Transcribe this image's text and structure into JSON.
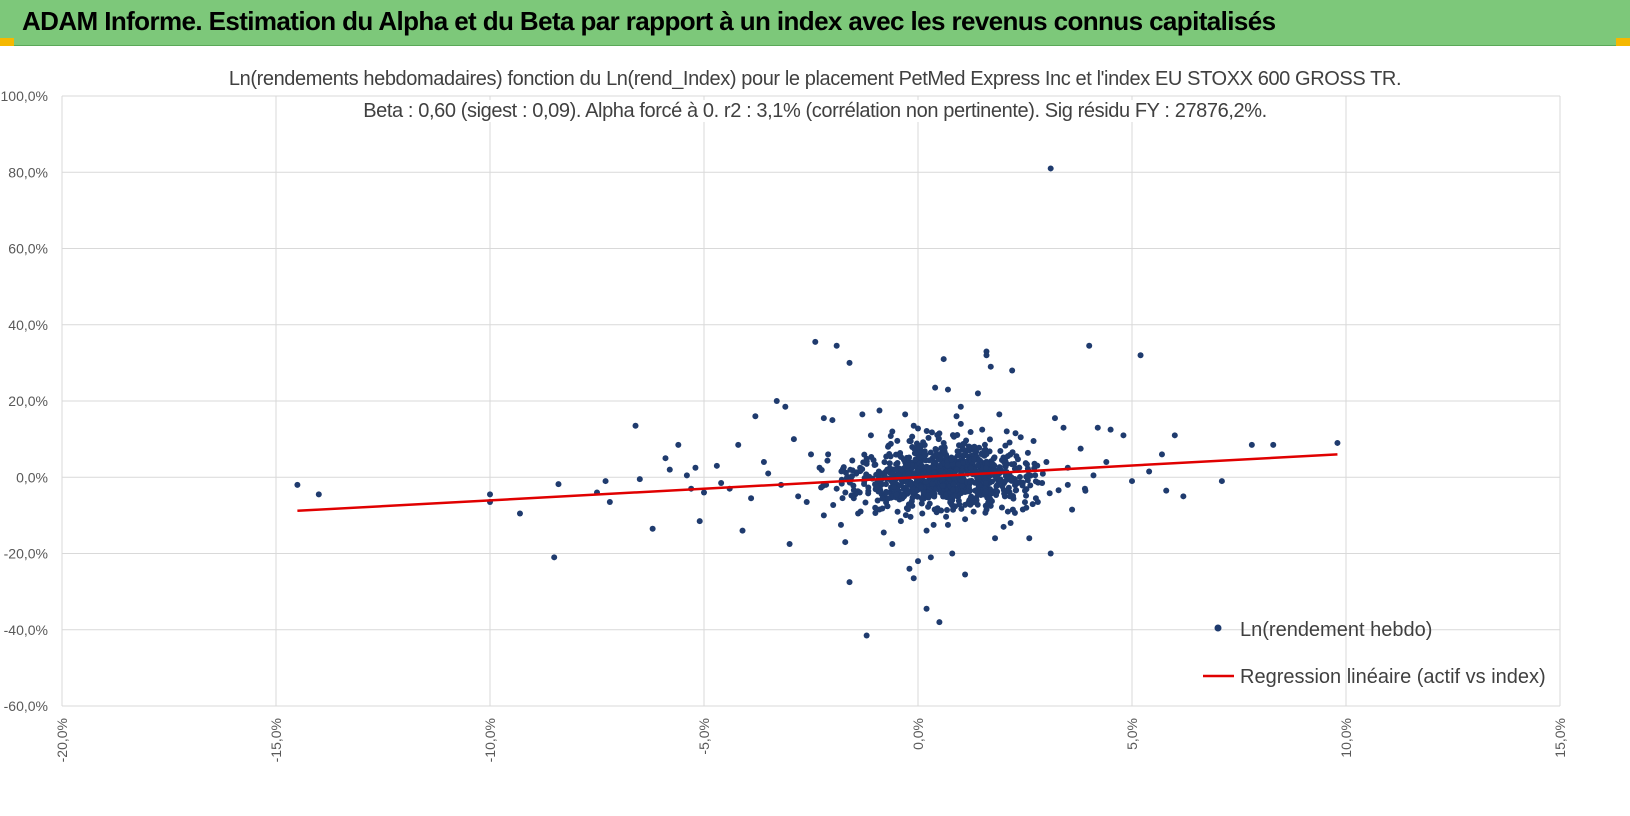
{
  "header": {
    "title": "ADAM Informe. Estimation du Alpha et du Beta par rapport à un index avec les revenus connus capitalisés"
  },
  "colors": {
    "banner": "#7dc87a",
    "accent_corner": "#f5b800",
    "points": "#1f3b6e",
    "regression": "#e00000",
    "grid": "#d9d9d9",
    "axis_text": "#595959"
  },
  "chart_data": {
    "type": "scatter",
    "title": "Ln(rendements hebdomadaires) fonction du Ln(rend_Index) pour le placement PetMed Express Inc et l'index EU STOXX 600 GROSS TR.",
    "subtitle": "Beta : 0,60 (sigest : 0,09). Alpha forcé à 0. r2 : 3,1% (corrélation non pertinente). Sig résidu FY : 27876,2%.",
    "xlabel": "",
    "ylabel": "",
    "xlim": [
      -20,
      15
    ],
    "ylim": [
      -60,
      100
    ],
    "xticks": [
      -20,
      -15,
      -10,
      -5,
      0,
      5,
      10,
      15
    ],
    "yticks": [
      -60,
      -40,
      -20,
      0,
      20,
      40,
      60,
      80,
      100
    ],
    "xtick_labels": [
      "-20,0%",
      "-15,0%",
      "-10,0%",
      "-5,0%",
      "0,0%",
      "5,0%",
      "10,0%",
      "15,0%"
    ],
    "ytick_labels": [
      "-60,0%",
      "-40,0%",
      "-20,0%",
      "0,0%",
      "20,0%",
      "40,0%",
      "60,0%",
      "80,0%",
      "100,0%"
    ],
    "grid": true,
    "legend_position": "bottom-right",
    "series": [
      {
        "name": "Ln(rendement hebdo)",
        "kind": "scatter",
        "points": [
          [
            -14.5,
            -2.0
          ],
          [
            -14.0,
            -4.5
          ],
          [
            -10.0,
            -4.5
          ],
          [
            -10.0,
            -6.5
          ],
          [
            -9.3,
            -9.5
          ],
          [
            -8.5,
            -21.0
          ],
          [
            -8.4,
            -1.8
          ],
          [
            -7.5,
            -4.0
          ],
          [
            -7.3,
            -1.0
          ],
          [
            -7.2,
            -6.5
          ],
          [
            -6.6,
            13.5
          ],
          [
            -6.5,
            -0.5
          ],
          [
            -6.2,
            -13.5
          ],
          [
            -5.9,
            5.0
          ],
          [
            -5.8,
            2.0
          ],
          [
            -5.6,
            8.5
          ],
          [
            -5.4,
            0.5
          ],
          [
            -5.2,
            2.5
          ],
          [
            -5.0,
            -4.0
          ],
          [
            -5.1,
            -11.5
          ],
          [
            -4.7,
            3.0
          ],
          [
            -4.4,
            -3.0
          ],
          [
            -4.2,
            8.5
          ],
          [
            -4.1,
            -14.0
          ],
          [
            -3.8,
            16.0
          ],
          [
            -3.6,
            4.0
          ],
          [
            -3.3,
            20.0
          ],
          [
            -3.1,
            18.5
          ],
          [
            -3.0,
            -17.5
          ],
          [
            -2.9,
            10.0
          ],
          [
            -2.5,
            6.0
          ],
          [
            -2.4,
            35.5
          ],
          [
            -2.2,
            15.5
          ],
          [
            -2.0,
            15.0
          ],
          [
            -1.9,
            34.5
          ],
          [
            -1.6,
            30.0
          ],
          [
            -1.7,
            -17.0
          ],
          [
            -1.6,
            -27.5
          ],
          [
            -1.2,
            -41.5
          ],
          [
            -1.3,
            16.5
          ],
          [
            -0.9,
            17.5
          ],
          [
            -0.6,
            12.0
          ],
          [
            -0.3,
            16.5
          ],
          [
            -0.2,
            -24.0
          ],
          [
            -0.1,
            -26.5
          ],
          [
            0.0,
            -22.0
          ],
          [
            0.2,
            -34.5
          ],
          [
            0.3,
            -21.0
          ],
          [
            0.4,
            23.5
          ],
          [
            0.5,
            -38.0
          ],
          [
            0.6,
            31.0
          ],
          [
            0.7,
            23.0
          ],
          [
            0.8,
            -20.0
          ],
          [
            1.0,
            18.5
          ],
          [
            1.1,
            -25.5
          ],
          [
            1.6,
            33.0
          ],
          [
            1.6,
            32.0
          ],
          [
            1.7,
            29.0
          ],
          [
            1.9,
            16.5
          ],
          [
            2.2,
            28.0
          ],
          [
            1.4,
            22.0
          ],
          [
            2.6,
            -16.0
          ],
          [
            3.1,
            81.0
          ],
          [
            3.2,
            15.5
          ],
          [
            3.1,
            -20.0
          ],
          [
            3.4,
            13.0
          ],
          [
            3.6,
            -8.5
          ],
          [
            3.8,
            7.5
          ],
          [
            3.9,
            -3.0
          ],
          [
            4.0,
            34.5
          ],
          [
            4.2,
            13.0
          ],
          [
            4.5,
            12.5
          ],
          [
            4.4,
            4.0
          ],
          [
            4.8,
            11.0
          ],
          [
            5.0,
            -1.0
          ],
          [
            5.2,
            32.0
          ],
          [
            5.4,
            1.5
          ],
          [
            5.7,
            6.0
          ],
          [
            5.8,
            -3.5
          ],
          [
            6.0,
            11.0
          ],
          [
            6.2,
            -5.0
          ],
          [
            7.1,
            -1.0
          ],
          [
            7.8,
            8.5
          ],
          [
            8.3,
            8.5
          ],
          [
            9.8,
            9.0
          ],
          [
            -2.6,
            -6.5
          ],
          [
            -2.2,
            -10.0
          ],
          [
            -1.8,
            -12.5
          ],
          [
            -1.5,
            -5.5
          ],
          [
            -1.0,
            -8.0
          ],
          [
            -0.8,
            -14.5
          ],
          [
            -0.5,
            -3.0
          ],
          [
            -0.3,
            4.5
          ],
          [
            0.0,
            1.5
          ],
          [
            0.1,
            -9.5
          ],
          [
            0.3,
            6.5
          ],
          [
            0.4,
            -2.0
          ],
          [
            0.6,
            9.0
          ],
          [
            0.8,
            -6.0
          ],
          [
            0.9,
            3.5
          ],
          [
            1.1,
            -11.0
          ],
          [
            1.2,
            7.0
          ],
          [
            1.4,
            -4.0
          ],
          [
            1.5,
            12.5
          ],
          [
            1.7,
            -7.5
          ],
          [
            1.9,
            2.0
          ],
          [
            2.1,
            -9.0
          ],
          [
            2.3,
            5.5
          ],
          [
            2.5,
            -3.5
          ],
          [
            2.7,
            9.5
          ],
          [
            2.9,
            -1.5
          ],
          [
            3.0,
            4.0
          ],
          [
            -0.7,
            8.0
          ],
          [
            -0.4,
            -11.5
          ],
          [
            -0.2,
            9.5
          ],
          [
            0.2,
            -14.0
          ],
          [
            0.5,
            11.5
          ],
          [
            0.7,
            -12.5
          ],
          [
            1.0,
            14.0
          ],
          [
            1.3,
            -9.0
          ],
          [
            -1.2,
            3.5
          ],
          [
            -1.4,
            -9.5
          ],
          [
            -1.9,
            -3.0
          ],
          [
            -2.3,
            2.5
          ],
          [
            -2.8,
            -5.0
          ],
          [
            -3.2,
            -2.0
          ],
          [
            -3.5,
            1.0
          ],
          [
            -3.9,
            -5.5
          ],
          [
            -4.6,
            -1.5
          ],
          [
            -5.3,
            -3.0
          ],
          [
            2.0,
            -13.0
          ],
          [
            2.4,
            10.5
          ],
          [
            1.8,
            -16.0
          ],
          [
            -0.1,
            13.5
          ],
          [
            0.9,
            16.0
          ],
          [
            -1.1,
            11.0
          ],
          [
            -0.6,
            -17.5
          ],
          [
            3.5,
            2.5
          ],
          [
            4.1,
            0.5
          ],
          [
            2.8,
            -6.5
          ],
          [
            -2.1,
            6.0
          ],
          [
            -1.6,
            -1.0
          ]
        ]
      },
      {
        "name": "Regression linéaire (actif vs index)",
        "kind": "line",
        "x": [
          -14.5,
          9.8
        ],
        "y": [
          -8.8,
          6.0
        ]
      }
    ]
  }
}
